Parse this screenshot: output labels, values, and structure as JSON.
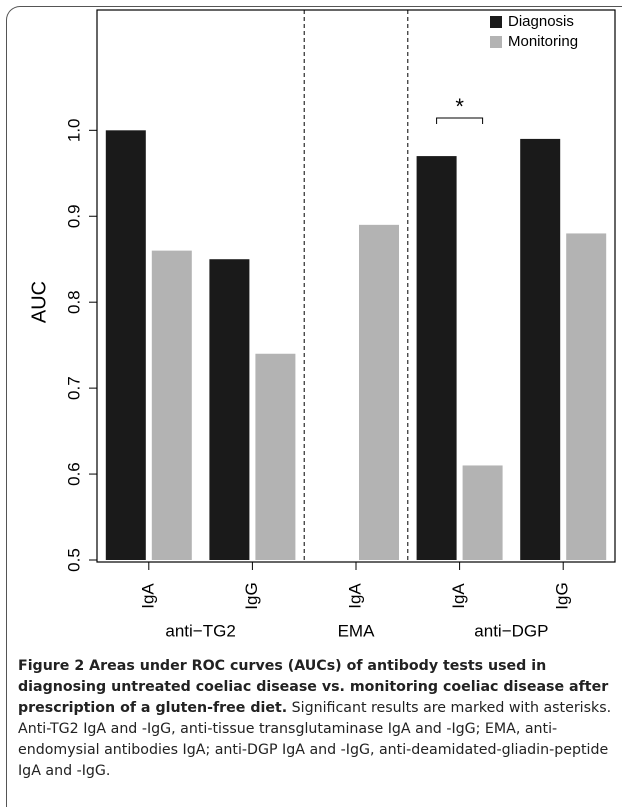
{
  "chart_data": {
    "type": "bar",
    "ylabel": "AUC",
    "groups": [
      {
        "name": "anti−TG2",
        "categories": [
          "IgA",
          "IgG"
        ]
      },
      {
        "name": "EMA",
        "categories": [
          "IgA"
        ]
      },
      {
        "name": "anti−DGP",
        "categories": [
          "IgA",
          "IgG"
        ]
      }
    ],
    "series": [
      {
        "name": "Diagnosis",
        "color": "#1a1a1a",
        "values": [
          1.0,
          0.85,
          null,
          0.97,
          0.99
        ]
      },
      {
        "name": "Monitoring",
        "color": "#b3b3b3",
        "values": [
          0.86,
          0.74,
          0.89,
          0.61,
          0.88
        ]
      }
    ],
    "ylim": [
      0.5,
      1.14
    ],
    "yticks": [
      0.5,
      0.6,
      0.7,
      0.8,
      0.9,
      {
        "value": 1,
        "label": "1.0"
      }
    ],
    "annotation": "*",
    "legend": "top-right"
  },
  "caption": {
    "title": "Figure 2 Areas under ROC curves (AUCs) of antibody tests used in diagnosing untreated coeliac disease vs. monitoring coeliac disease after prescription of a gluten-free diet.",
    "text": "Significant results are marked with asterisks. Anti-TG2 IgA and -IgG, anti-tissue transglutaminase IgA and -IgG; EMA, anti-endomysial antibodies IgA; anti-DGP IgA and -IgG, anti-deamidated-gliadin-peptide IgA and -IgG."
  }
}
